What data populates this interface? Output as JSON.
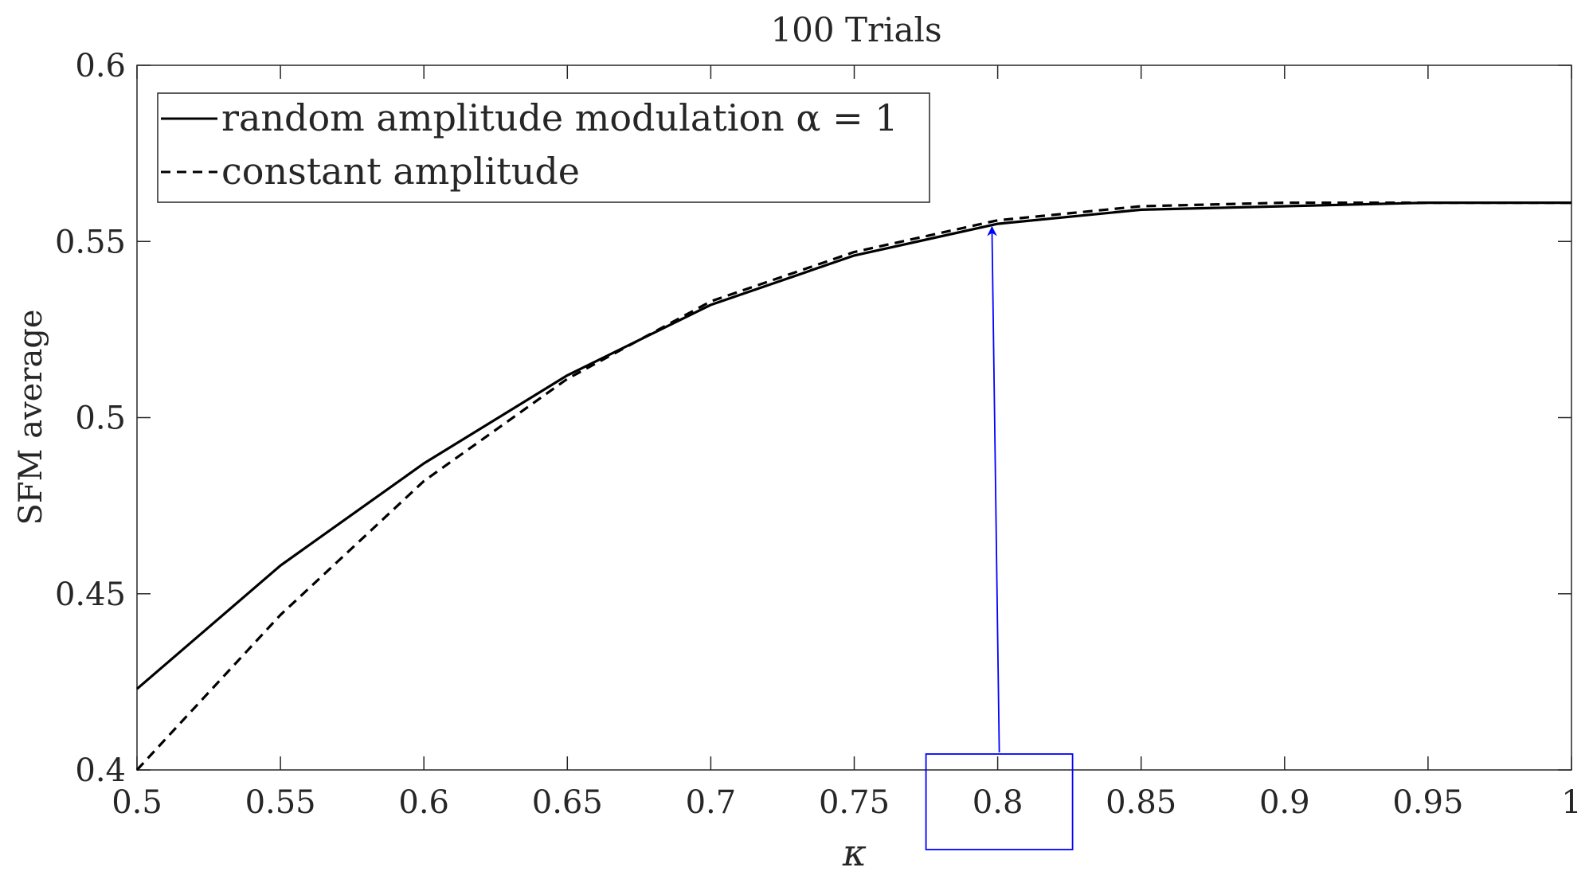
{
  "chart_data": {
    "type": "line",
    "title": "100 Trials",
    "xlabel": "κ",
    "ylabel": "SFM average",
    "xlim": [
      0.5,
      1
    ],
    "ylim": [
      0.4,
      0.6
    ],
    "xticks": [
      0.5,
      0.55,
      0.6,
      0.65,
      0.7,
      0.75,
      0.8,
      0.85,
      0.9,
      0.95,
      1
    ],
    "xtick_labels": [
      "0.5",
      "0.55",
      "0.6",
      "0.65",
      "0.7",
      "0.75",
      "0.8",
      "0.85",
      "0.9",
      "0.95",
      "1"
    ],
    "yticks": [
      0.4,
      0.45,
      0.5,
      0.55,
      0.6
    ],
    "ytick_labels": [
      "0.4",
      "0.45",
      "0.5",
      "0.55",
      "0.6"
    ],
    "x": [
      0.5,
      0.55,
      0.6,
      0.65,
      0.7,
      0.75,
      0.8,
      0.85,
      0.9,
      0.95,
      1
    ],
    "series": [
      {
        "name": "random amplitude modulation α = 1",
        "style": "solid",
        "color": "#000000",
        "values": [
          0.423,
          0.458,
          0.487,
          0.512,
          0.532,
          0.546,
          0.555,
          0.559,
          0.56,
          0.561,
          0.561
        ]
      },
      {
        "name": "constant amplitude",
        "style": "dashed",
        "color": "#000000",
        "values": [
          0.4,
          0.444,
          0.482,
          0.511,
          0.533,
          0.547,
          0.556,
          0.56,
          0.561,
          0.561,
          0.561
        ]
      }
    ],
    "legend": {
      "placement": "top-left",
      "entries": [
        "random amplitude modulation α = 1",
        "constant amplitude"
      ]
    },
    "annotations": [
      {
        "type": "arrow",
        "color": "#0000ff",
        "from": {
          "x": 0.8,
          "y": 0.4
        },
        "to": {
          "x": 0.798,
          "y": 0.555
        }
      },
      {
        "type": "rectangle",
        "color": "#0000ff",
        "around_tick": "0.8"
      }
    ],
    "grid": false
  }
}
